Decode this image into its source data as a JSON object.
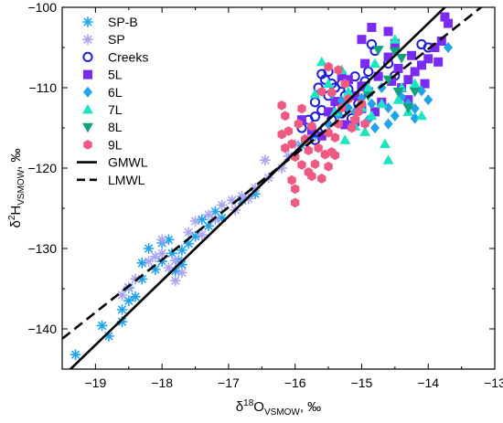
{
  "chart_data": {
    "type": "scatter",
    "xlabel_parts": [
      "δ",
      "18",
      "O",
      "VSMOW",
      ", ‰"
    ],
    "ylabel_parts": [
      "δ",
      "2",
      "H",
      "VSMOW",
      ", ‰"
    ],
    "xlim": [
      -19.5,
      -13
    ],
    "ylim": [
      -145,
      -100
    ],
    "x_ticks": [
      -19,
      -18,
      -17,
      -16,
      -15,
      -14,
      -13
    ],
    "y_ticks": [
      -140,
      -130,
      -120,
      -110,
      -100
    ],
    "x_tick_labels": [
      "−19",
      "−18",
      "−17",
      "−16",
      "−15",
      "−14",
      "−13"
    ],
    "y_tick_labels": [
      "−140",
      "−130",
      "−120",
      "−110",
      "−100"
    ],
    "legend_position": "top-left",
    "series": [
      {
        "name": "SP-B",
        "marker": "asterisk",
        "color": "#1fa3ea",
        "points": [
          [
            -19.3,
            -143.2
          ],
          [
            -18.9,
            -139.6
          ],
          [
            -18.8,
            -140.9
          ],
          [
            -18.6,
            -139.1
          ],
          [
            -18.6,
            -137.6
          ],
          [
            -18.5,
            -136.5
          ],
          [
            -18.5,
            -134.9
          ],
          [
            -18.4,
            -136.0
          ],
          [
            -18.3,
            -133.8
          ],
          [
            -18.3,
            -131.8
          ],
          [
            -18.2,
            -130.0
          ],
          [
            -18.1,
            -132.6
          ],
          [
            -18.0,
            -131.6
          ],
          [
            -18.0,
            -129.3
          ],
          [
            -17.9,
            -128.9
          ],
          [
            -17.85,
            -130.6
          ],
          [
            -17.8,
            -132.8
          ],
          [
            -17.75,
            -131.5
          ],
          [
            -17.7,
            -130.2
          ],
          [
            -17.7,
            -132.0
          ],
          [
            -17.6,
            -129.4
          ],
          [
            -17.5,
            -128.5
          ],
          [
            -17.4,
            -126.4
          ],
          [
            -17.3,
            -127.2
          ],
          [
            -17.2,
            -125.4
          ],
          [
            -17.1,
            -126.2
          ],
          [
            -16.8,
            -124.0
          ],
          [
            -16.6,
            -123.2
          ],
          [
            -15.9,
            -117.2
          ],
          [
            -15.7,
            -116.0
          ]
        ]
      },
      {
        "name": "SP",
        "marker": "asterisk",
        "color": "#a9a5ef",
        "points": [
          [
            -18.6,
            -135.8
          ],
          [
            -18.5,
            -134.8
          ],
          [
            -18.4,
            -133.8
          ],
          [
            -18.2,
            -131.6
          ],
          [
            -18.1,
            -131.0
          ],
          [
            -18.0,
            -130.6
          ],
          [
            -18.0,
            -128.9
          ],
          [
            -17.9,
            -132.4
          ],
          [
            -17.8,
            -131.5
          ],
          [
            -17.8,
            -134.0
          ],
          [
            -17.7,
            -133.0
          ],
          [
            -17.6,
            -128.0
          ],
          [
            -17.5,
            -126.6
          ],
          [
            -17.4,
            -128.3
          ],
          [
            -17.3,
            -125.8
          ],
          [
            -17.2,
            -126.4
          ],
          [
            -17.1,
            -124.6
          ],
          [
            -16.95,
            -124.0
          ],
          [
            -16.9,
            -125.2
          ],
          [
            -16.8,
            -123.5
          ],
          [
            -16.7,
            -123.8
          ],
          [
            -16.6,
            -122.5
          ],
          [
            -16.45,
            -119.0
          ],
          [
            -16.4,
            -121.2
          ],
          [
            -16.2,
            -120.0
          ],
          [
            -16.1,
            -118.5
          ],
          [
            -16.0,
            -117.0
          ],
          [
            -15.8,
            -116.5
          ]
        ]
      },
      {
        "name": "Creeks",
        "marker": "circle-open",
        "color": "#1f1fd6",
        "points": [
          [
            -15.9,
            -115.0
          ],
          [
            -15.8,
            -114.0
          ],
          [
            -15.7,
            -113.6
          ],
          [
            -15.7,
            -111.8
          ],
          [
            -15.65,
            -110.0
          ],
          [
            -15.6,
            -108.3
          ],
          [
            -15.6,
            -112.8
          ],
          [
            -15.55,
            -109.0
          ],
          [
            -15.5,
            -108.0
          ],
          [
            -15.5,
            -111.0
          ],
          [
            -15.45,
            -114.0
          ],
          [
            -15.4,
            -110.0
          ],
          [
            -15.35,
            -112.5
          ],
          [
            -15.3,
            -109.5
          ],
          [
            -15.3,
            -113.2
          ],
          [
            -15.25,
            -111.0
          ],
          [
            -15.2,
            -110.2
          ],
          [
            -15.15,
            -113.8
          ],
          [
            -15.1,
            -108.6
          ],
          [
            -15.05,
            -112.0
          ],
          [
            -15.0,
            -110.8
          ],
          [
            -14.95,
            -109.2
          ],
          [
            -14.9,
            -108.0
          ],
          [
            -14.85,
            -104.6
          ],
          [
            -14.8,
            -105.4
          ],
          [
            -14.6,
            -107.0
          ],
          [
            -14.5,
            -108.5
          ],
          [
            -14.1,
            -104.6
          ],
          [
            -14.0,
            -105.0
          ],
          [
            -15.7,
            -116.5
          ],
          [
            -15.55,
            -115.0
          ],
          [
            -15.45,
            -109.5
          ]
        ]
      },
      {
        "name": "5L",
        "marker": "square",
        "color": "#7a2bf2",
        "points": [
          [
            -15.9,
            -114.0
          ],
          [
            -15.75,
            -115.3
          ],
          [
            -15.6,
            -116.0
          ],
          [
            -15.5,
            -113.0
          ],
          [
            -15.4,
            -111.7
          ],
          [
            -15.3,
            -108.5
          ],
          [
            -15.25,
            -114.6
          ],
          [
            -15.2,
            -109.0
          ],
          [
            -15.1,
            -111.0
          ],
          [
            -15.0,
            -112.6
          ],
          [
            -15.0,
            -109.8
          ],
          [
            -14.95,
            -107.0
          ],
          [
            -14.9,
            -110.5
          ],
          [
            -14.8,
            -113.0
          ],
          [
            -14.75,
            -108.6
          ],
          [
            -14.7,
            -111.8
          ],
          [
            -14.6,
            -106.2
          ],
          [
            -14.55,
            -109.2
          ],
          [
            -14.5,
            -104.5
          ],
          [
            -14.45,
            -107.6
          ],
          [
            -14.4,
            -110.0
          ],
          [
            -14.3,
            -109.0
          ],
          [
            -14.25,
            -106.0
          ],
          [
            -14.2,
            -108.0
          ],
          [
            -14.1,
            -107.2
          ],
          [
            -14.05,
            -109.5
          ],
          [
            -14.0,
            -106.4
          ],
          [
            -13.9,
            -105.0
          ],
          [
            -13.85,
            -106.8
          ],
          [
            -13.8,
            -104.2
          ],
          [
            -13.75,
            -101.2
          ],
          [
            -13.7,
            -102.0
          ],
          [
            -14.6,
            -103.0
          ],
          [
            -15.0,
            -104.0
          ],
          [
            -14.85,
            -102.5
          ],
          [
            -15.1,
            -114.2
          ],
          [
            -14.3,
            -111.5
          ]
        ]
      },
      {
        "name": "6L",
        "marker": "diamond",
        "color": "#1fa3ea",
        "points": [
          [
            -15.5,
            -114.5
          ],
          [
            -15.45,
            -110.8
          ],
          [
            -15.35,
            -113.3
          ],
          [
            -15.3,
            -111.6
          ],
          [
            -15.2,
            -112.5
          ],
          [
            -15.1,
            -113.0
          ],
          [
            -15.0,
            -111.3
          ],
          [
            -14.9,
            -114.0
          ],
          [
            -14.85,
            -112.0
          ],
          [
            -14.8,
            -115.0
          ],
          [
            -14.7,
            -110.0
          ],
          [
            -14.6,
            -112.5
          ],
          [
            -14.5,
            -113.5
          ],
          [
            -14.4,
            -111.2
          ],
          [
            -14.3,
            -112.0
          ],
          [
            -14.2,
            -113.8
          ],
          [
            -14.1,
            -110.4
          ],
          [
            -14.0,
            -111.5
          ],
          [
            -13.7,
            -105.0
          ],
          [
            -14.2,
            -112.6
          ],
          [
            -14.6,
            -114.5
          ]
        ]
      },
      {
        "name": "7L",
        "marker": "triangle-up",
        "color": "#1ce6c2",
        "points": [
          [
            -15.7,
            -110.8
          ],
          [
            -15.5,
            -109.5
          ],
          [
            -15.4,
            -113.0
          ],
          [
            -15.3,
            -107.8
          ],
          [
            -15.2,
            -110.5
          ],
          [
            -15.1,
            -114.8
          ],
          [
            -15.0,
            -112.5
          ],
          [
            -14.95,
            -115.5
          ],
          [
            -14.9,
            -110.0
          ],
          [
            -14.85,
            -113.5
          ],
          [
            -14.8,
            -107.0
          ],
          [
            -14.7,
            -112.0
          ],
          [
            -14.6,
            -119.0
          ],
          [
            -14.5,
            -104.0
          ],
          [
            -14.45,
            -111.5
          ],
          [
            -14.4,
            -110.0
          ],
          [
            -14.3,
            -113.0
          ],
          [
            -14.2,
            -109.5
          ],
          [
            -14.65,
            -117.0
          ],
          [
            -15.25,
            -116.5
          ],
          [
            -15.6,
            -106.8
          ],
          [
            -14.1,
            -113.5
          ]
        ]
      },
      {
        "name": "8L",
        "marker": "triangle-down",
        "color": "#13a07f",
        "points": [
          [
            -14.75,
            -105.3
          ],
          [
            -14.6,
            -109.0
          ],
          [
            -14.5,
            -105.5
          ],
          [
            -14.45,
            -110.5
          ],
          [
            -14.3,
            -112.5
          ],
          [
            -14.9,
            -111.0
          ],
          [
            -14.2,
            -110.5
          ],
          [
            -14.4,
            -106.3
          ]
        ]
      },
      {
        "name": "9L",
        "marker": "hexagon",
        "color": "#ef5a82",
        "points": [
          [
            -16.2,
            -112.2
          ],
          [
            -16.15,
            -113.5
          ],
          [
            -16.1,
            -115.4
          ],
          [
            -16.05,
            -117.0
          ],
          [
            -16.0,
            -118.6
          ],
          [
            -16.0,
            -124.3
          ],
          [
            -15.95,
            -114.5
          ],
          [
            -15.9,
            -112.6
          ],
          [
            -15.85,
            -116.4
          ],
          [
            -15.8,
            -120.5
          ],
          [
            -15.75,
            -121.0
          ],
          [
            -15.7,
            -119.5
          ],
          [
            -15.65,
            -117.5
          ],
          [
            -15.6,
            -110.5
          ],
          [
            -15.55,
            -118.3
          ],
          [
            -15.5,
            -115.6
          ],
          [
            -15.45,
            -118.0
          ],
          [
            -15.4,
            -116.2
          ],
          [
            -15.35,
            -114.5
          ],
          [
            -15.3,
            -112.5
          ],
          [
            -15.25,
            -109.5
          ],
          [
            -15.2,
            -111.4
          ],
          [
            -15.15,
            -115.0
          ],
          [
            -15.1,
            -114.0
          ],
          [
            -15.05,
            -113.0
          ],
          [
            -15.0,
            -112.0
          ],
          [
            -14.95,
            -114.5
          ],
          [
            -15.75,
            -114.8
          ],
          [
            -15.8,
            -117.8
          ],
          [
            -15.35,
            -107.8
          ],
          [
            -15.5,
            -107.4
          ],
          [
            -15.45,
            -110.6
          ],
          [
            -16.15,
            -117.5
          ],
          [
            -16.2,
            -115.8
          ],
          [
            -15.9,
            -119.6
          ],
          [
            -16.05,
            -121.5
          ],
          [
            -16.0,
            -122.6
          ],
          [
            -15.6,
            -121.3
          ],
          [
            -15.5,
            -119.8
          ],
          [
            -15.4,
            -118.4
          ]
        ]
      }
    ],
    "lines": [
      {
        "name": "GMWL",
        "style": "solid",
        "slope": 8,
        "intercept": 10
      },
      {
        "name": "LMWL",
        "style": "dashed",
        "slope": 6.55,
        "intercept": -13.5
      }
    ]
  }
}
